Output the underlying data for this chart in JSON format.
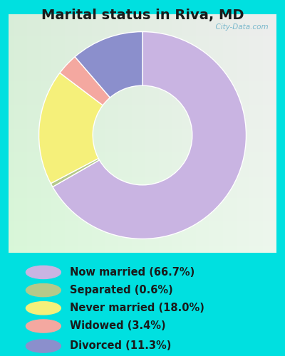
{
  "title": "Marital status in Riva, MD",
  "slices": [
    66.7,
    0.6,
    18.0,
    3.4,
    11.3
  ],
  "colors": [
    "#c9b4e2",
    "#b5c98a",
    "#f5f07a",
    "#f4a8a0",
    "#8b8fcc"
  ],
  "labels": [
    "Now married (66.7%)",
    "Separated (0.6%)",
    "Never married (18.0%)",
    "Widowed (3.4%)",
    "Divorced (11.3%)"
  ],
  "bg_outer": "#00e0e0",
  "bg_chart_tl": "#d8f0d8",
  "bg_chart_br": "#e8f8f0",
  "title_fontsize": 14,
  "legend_fontsize": 10.5,
  "watermark": "  City-Data.com"
}
